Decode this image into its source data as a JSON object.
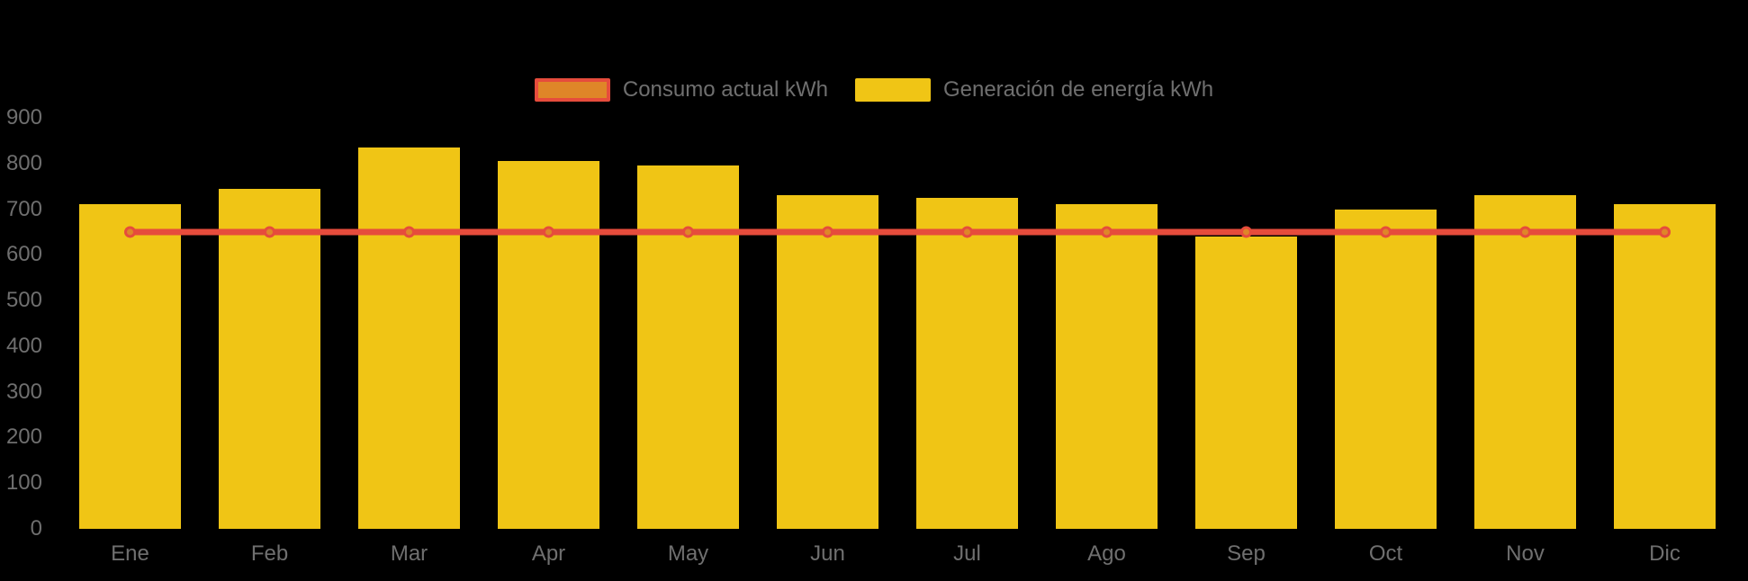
{
  "page": {
    "background": "#000000",
    "axis_text_color": "#6f6f6f"
  },
  "legend": {
    "position": "top-center",
    "items": [
      {
        "label": "Consumo actual kWh",
        "swatch_type": "line",
        "fill": "#df8628",
        "border": "#e64c3c"
      },
      {
        "label": "Generación de energía kWh",
        "swatch_type": "bar",
        "fill": "#f0c515",
        "border": null
      }
    ]
  },
  "chart_data": {
    "type": "bar",
    "categories": [
      "Ene",
      "Feb",
      "Mar",
      "Apr",
      "May",
      "Jun",
      "Jul",
      "Ago",
      "Sep",
      "Oct",
      "Nov",
      "Dic"
    ],
    "series": [
      {
        "name": "Consumo actual kWh",
        "render": "line",
        "line_color": "#e64c3c",
        "marker_fill": "#df8628",
        "values": [
          650,
          650,
          650,
          650,
          650,
          650,
          650,
          650,
          650,
          650,
          650,
          650
        ]
      },
      {
        "name": "Generación de energía kWh",
        "render": "bar",
        "color": "#f0c515",
        "values": [
          710,
          745,
          835,
          805,
          795,
          730,
          725,
          710,
          640,
          700,
          730,
          710
        ]
      }
    ],
    "title": "",
    "xlabel": "",
    "ylabel": "",
    "ylim": [
      0,
      900
    ],
    "yticks": [
      0,
      100,
      200,
      300,
      400,
      500,
      600,
      700,
      800,
      900
    ],
    "grid": false,
    "legend_position": "top-center",
    "background": "#000000"
  }
}
